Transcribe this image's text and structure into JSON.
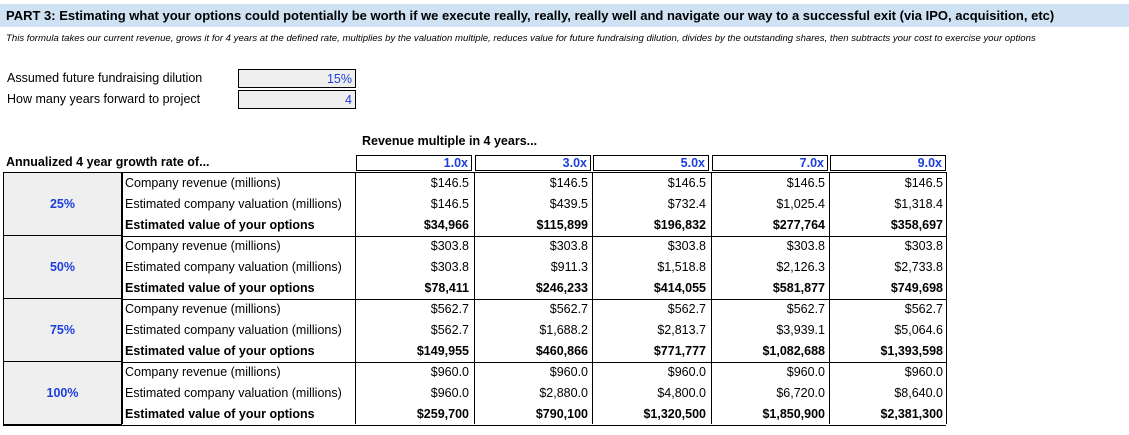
{
  "header": "PART 3: Estimating what your options could potentially be worth if we execute really, really, really well and navigate our way to a successful exit (via IPO, acquisition, etc)",
  "subtitle": "This formula takes our current revenue, grows it for 4 years at the defined rate, multiplies by the valuation multiple, reduces value for future fundraising dilution, divides by the outstanding shares, then subtracts your cost to exercise your options",
  "inputs": [
    {
      "label": "Assumed future fundraising dilution",
      "value": "15%"
    },
    {
      "label": "How many years forward to project",
      "value": "4"
    }
  ],
  "table": {
    "multiple_title": "Revenue multiple in 4 years...",
    "growth_title": "Annualized 4 year growth rate of...",
    "multiples": [
      "1.0x",
      "3.0x",
      "5.0x",
      "7.0x",
      "9.0x"
    ],
    "row_labels": [
      "Company revenue (millions)",
      "Estimated company valuation (millions)",
      "Estimated value of your options"
    ],
    "groups": [
      {
        "rate": "25%",
        "rows": [
          [
            "$146.5",
            "$146.5",
            "$146.5",
            "$146.5",
            "$146.5"
          ],
          [
            "$146.5",
            "$439.5",
            "$732.4",
            "$1,025.4",
            "$1,318.4"
          ],
          [
            "$34,966",
            "$115,899",
            "$196,832",
            "$277,764",
            "$358,697"
          ]
        ]
      },
      {
        "rate": "50%",
        "rows": [
          [
            "$303.8",
            "$303.8",
            "$303.8",
            "$303.8",
            "$303.8"
          ],
          [
            "$303.8",
            "$911.3",
            "$1,518.8",
            "$2,126.3",
            "$2,733.8"
          ],
          [
            "$78,411",
            "$246,233",
            "$414,055",
            "$581,877",
            "$749,698"
          ]
        ]
      },
      {
        "rate": "75%",
        "rows": [
          [
            "$562.7",
            "$562.7",
            "$562.7",
            "$562.7",
            "$562.7"
          ],
          [
            "$562.7",
            "$1,688.2",
            "$2,813.7",
            "$3,939.1",
            "$5,064.6"
          ],
          [
            "$149,955",
            "$460,866",
            "$771,777",
            "$1,082,688",
            "$1,393,598"
          ]
        ]
      },
      {
        "rate": "100%",
        "rows": [
          [
            "$960.0",
            "$960.0",
            "$960.0",
            "$960.0",
            "$960.0"
          ],
          [
            "$960.0",
            "$2,880.0",
            "$4,800.0",
            "$6,720.0",
            "$8,640.0"
          ],
          [
            "$259,700",
            "$790,100",
            "$1,320,500",
            "$1,850,900",
            "$2,381,300"
          ]
        ]
      }
    ]
  },
  "colors": {
    "header_bg": "#cfe2f3",
    "input_text": "#1c3fdb",
    "input_bg": "#efefef"
  }
}
